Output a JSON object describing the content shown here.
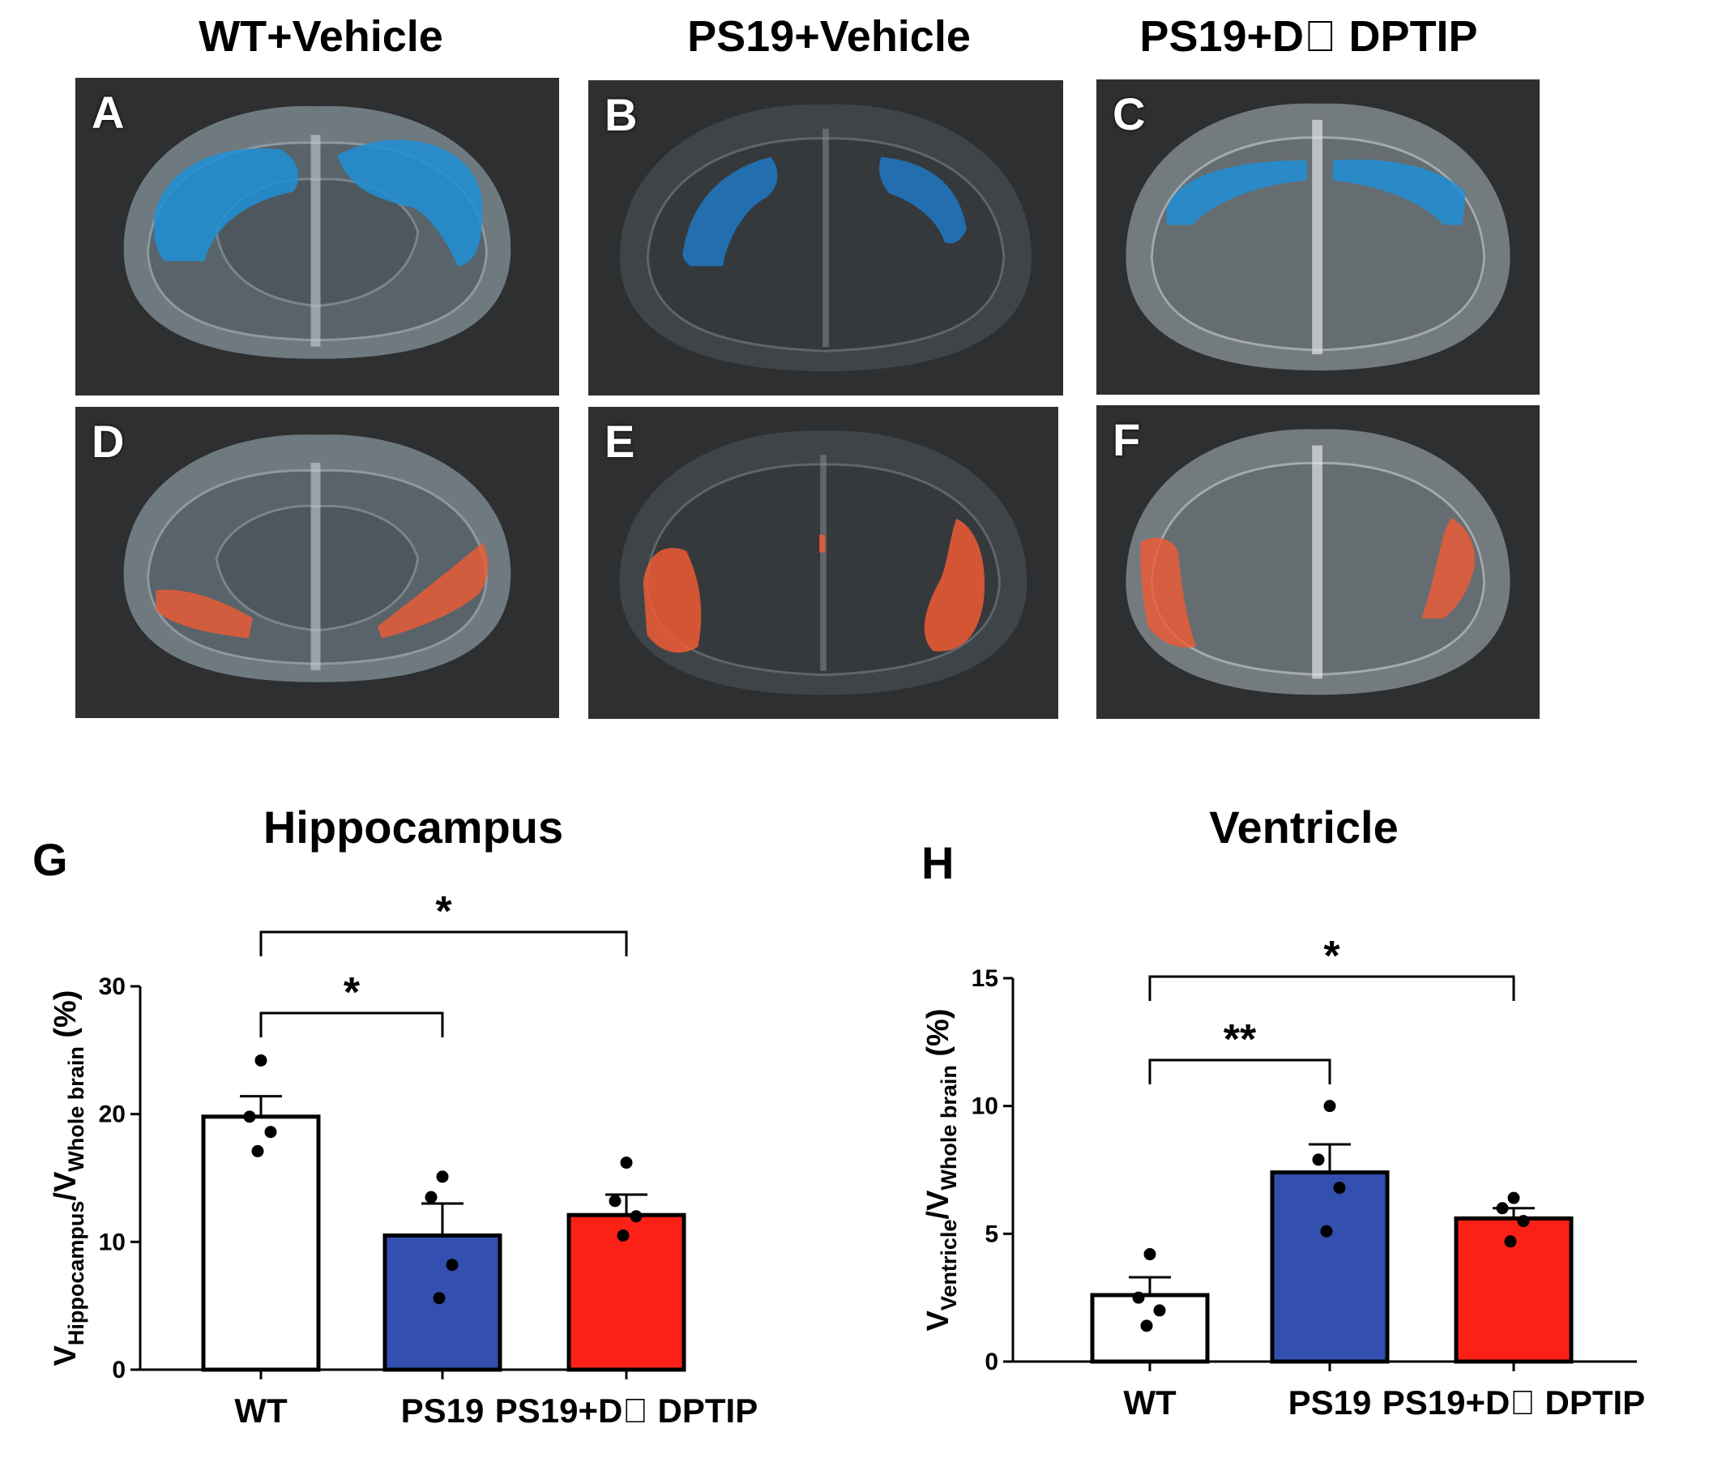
{
  "column_titles": [
    "WT+Vehicle",
    "PS19+Vehicle",
    "PS19+D\u0000 DPTIP"
  ],
  "panel_letters": [
    "A",
    "B",
    "C",
    "D",
    "E",
    "F"
  ],
  "colors": {
    "wt": "#ffffff",
    "ps19": "#3350b0",
    "ps19_dptip": "#fb2117",
    "hippocampus_overlay": "#1e8fd6",
    "ventricle_overlay": "#f05a33"
  },
  "chart_data": [
    {
      "type": "bar",
      "panel": "G",
      "title": "Hippocampus",
      "categories": [
        "WT",
        "PS19",
        "PS19+D\u0000 DPTIP"
      ],
      "values": [
        19.8,
        10.5,
        12.1
      ],
      "sem": [
        1.6,
        2.5,
        1.6
      ],
      "points": [
        [
          24.2,
          19.8,
          18.6,
          17.1
        ],
        [
          15.1,
          13.5,
          8.2,
          5.6
        ],
        [
          16.2,
          13.2,
          12.0,
          10.5
        ]
      ],
      "ylabel_main": "V",
      "ylabel_sub1": "Hippocampus",
      "ylabel_mid": "/V",
      "ylabel_sub2": "Whole brain",
      "ylabel_unit": "(%)",
      "ylim": [
        0,
        30
      ],
      "yticks": [
        0,
        10,
        20,
        30
      ],
      "ytick_labels": [
        "0",
        "10",
        "20",
        "30"
      ],
      "significance": [
        {
          "from": 0,
          "to": 1,
          "label": "*",
          "level": 1
        },
        {
          "from": 0,
          "to": 2,
          "label": "*",
          "level": 2
        }
      ]
    },
    {
      "type": "bar",
      "panel": "H",
      "title": "Ventricle",
      "categories": [
        "WT",
        "PS19",
        "PS19+D\u0000 DPTIP"
      ],
      "values": [
        2.6,
        7.4,
        5.6
      ],
      "sem": [
        0.7,
        1.1,
        0.4
      ],
      "points": [
        [
          4.2,
          2.5,
          2.0,
          1.4
        ],
        [
          10.0,
          7.9,
          6.8,
          5.1
        ],
        [
          6.4,
          6.0,
          5.5,
          4.7
        ]
      ],
      "ylabel_main": "V",
      "ylabel_sub1": "Ventricle",
      "ylabel_mid": "/V",
      "ylabel_sub2": "Whole brain",
      "ylabel_unit": "(%)",
      "ylim": [
        0,
        15
      ],
      "yticks": [
        0,
        5,
        10,
        15
      ],
      "ytick_labels": [
        "0",
        "5",
        "10",
        "15"
      ],
      "significance": [
        {
          "from": 0,
          "to": 1,
          "label": "**",
          "level": 1
        },
        {
          "from": 0,
          "to": 2,
          "label": "*",
          "level": 2
        }
      ]
    }
  ]
}
